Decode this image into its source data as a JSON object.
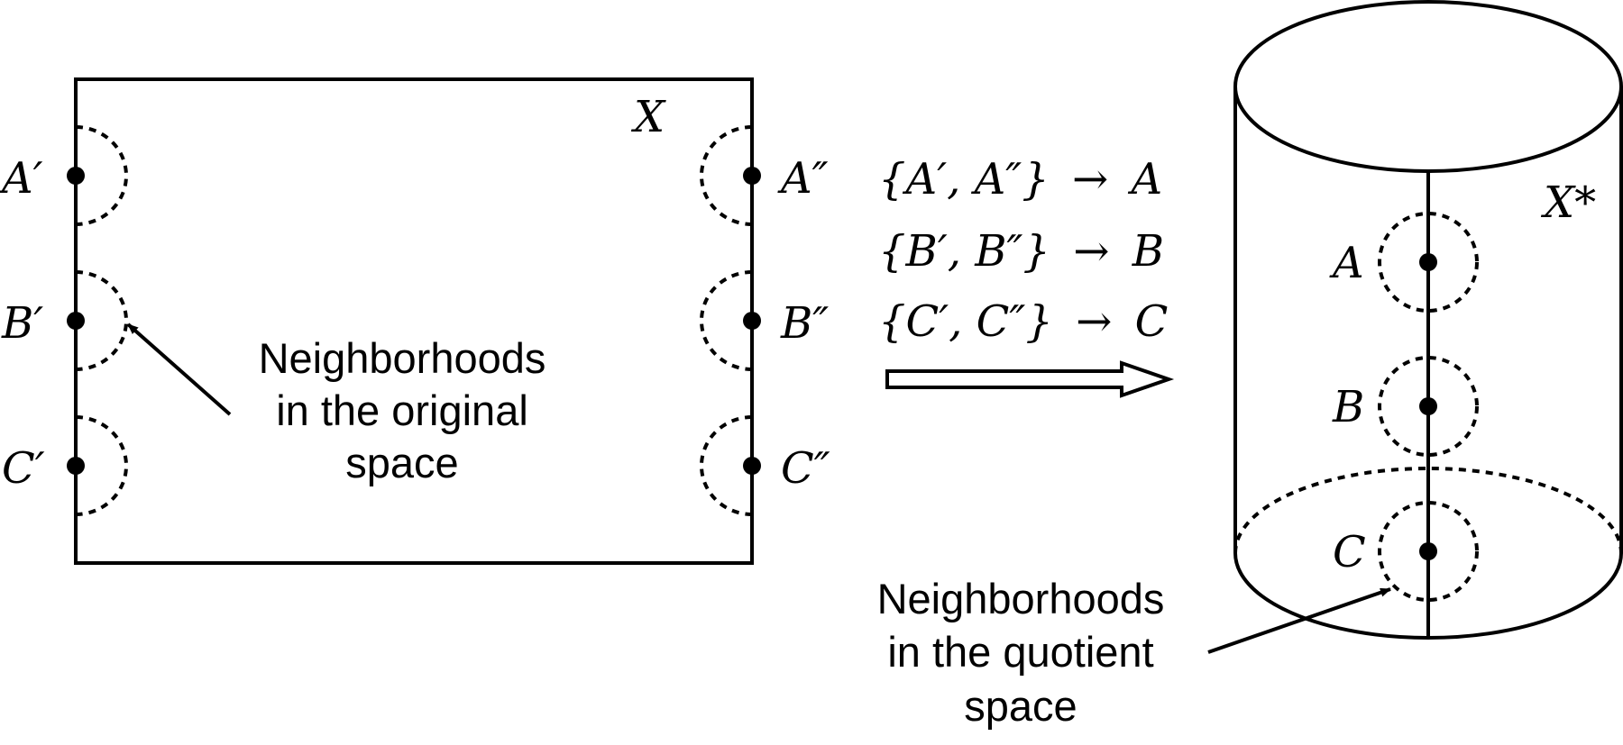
{
  "original_space": {
    "label": "X",
    "left_points": [
      "A′",
      "B′",
      "C′"
    ],
    "right_points": [
      "A″",
      "B″",
      "C″"
    ],
    "caption": [
      "Neighborhoods",
      "in the original",
      "space"
    ]
  },
  "mapping": {
    "rules": [
      {
        "set": "{A′, A″}",
        "arrow": "→",
        "target": "A"
      },
      {
        "set": "{B′, B″}",
        "arrow": "→",
        "target": "B"
      },
      {
        "set": "{C′, C″}",
        "arrow": "→",
        "target": "C"
      }
    ]
  },
  "quotient_space": {
    "label": "X*",
    "points": [
      "A",
      "B",
      "C"
    ],
    "caption": [
      "Neighborhoods",
      "in the quotient",
      "space"
    ]
  }
}
